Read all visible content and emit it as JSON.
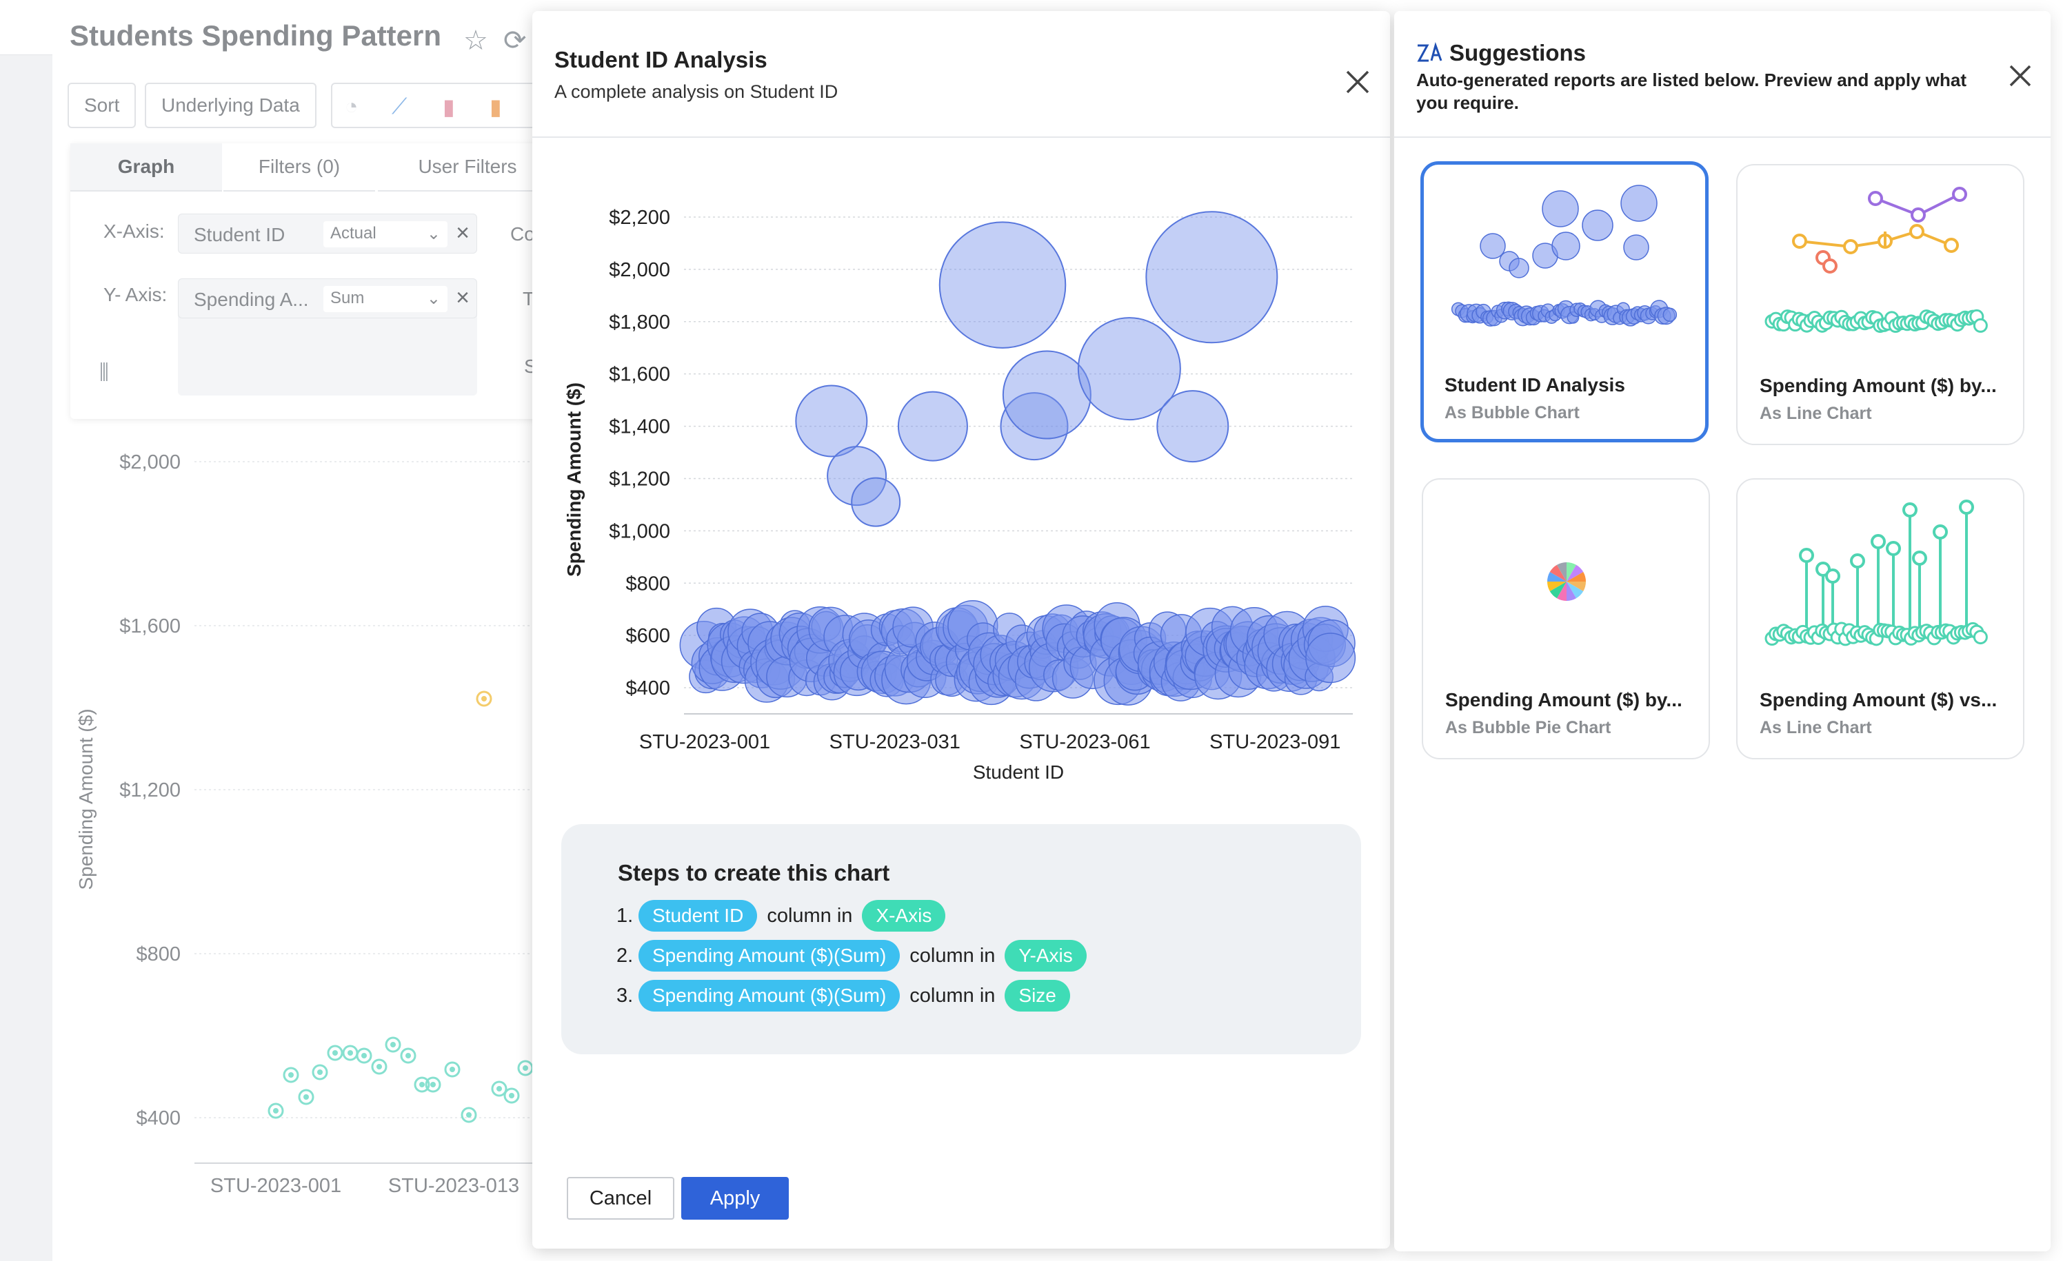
{
  "workspace": {
    "title": "Students Spending Pattern",
    "buttons": {
      "sort": "Sort",
      "underlying": "Underlying Data"
    },
    "tabs": {
      "graph": "Graph",
      "filters": "Filters  (0)",
      "user_filters": "User Filters"
    },
    "x_axis": {
      "label": "X-Axis:",
      "field": "Student ID",
      "agg": "Actual"
    },
    "y_axis": {
      "label": "Y- Axis:",
      "field": "Spending A...",
      "agg": "Sum"
    },
    "cut_labels": {
      "co": "Co",
      "t": "T",
      "s": "S"
    },
    "bg_chart": {
      "y_label": "Spending Amount ($)",
      "y_ticks": [
        "$2,000",
        "$1,600",
        "$1,200",
        "$800",
        "$400"
      ],
      "x_ticks": [
        "STU-2023-001",
        "STU-2023-013"
      ],
      "color": "#86e0cf",
      "highlight_color": "#f4cc6b"
    }
  },
  "analysis": {
    "title": "Student ID Analysis",
    "subtitle": "A complete analysis on Student ID",
    "cancel_label": "Cancel",
    "apply_label": "Apply",
    "steps_title": "Steps to create this chart",
    "steps": [
      {
        "num": "1.",
        "field": "Student ID",
        "mid": "column in",
        "target": "X-Axis"
      },
      {
        "num": "2.",
        "field": "Spending Amount ($)(Sum)",
        "mid": "column in",
        "target": "Y-Axis"
      },
      {
        "num": "3.",
        "field": "Spending Amount ($)(Sum)",
        "mid": "column in",
        "target": "Size"
      }
    ]
  },
  "chart_data": {
    "type": "scatter",
    "subtype": "bubble",
    "xlabel": "Student ID",
    "ylabel": "Spending Amount ($)",
    "ylim": [
      300,
      2250
    ],
    "y_ticks": [
      "$2,200",
      "$2,000",
      "$1,800",
      "$1,600",
      "$1,400",
      "$1,200",
      "$1,000",
      "$800",
      "$600",
      "$400"
    ],
    "x_ticks": [
      "STU-2023-001",
      "STU-2023-031",
      "STU-2023-061",
      "STU-2023-091"
    ],
    "grid": true,
    "color": "#7b96ec",
    "large_bubbles": [
      {
        "x": 21,
        "y": 1420,
        "size": 1420
      },
      {
        "x": 25,
        "y": 1210,
        "size": 1300
      },
      {
        "x": 28,
        "y": 1110,
        "size": 1200
      },
      {
        "x": 37,
        "y": 1400,
        "size": 1400
      },
      {
        "x": 53,
        "y": 1400,
        "size": 1380
      },
      {
        "x": 48,
        "y": 1940,
        "size": 1950
      },
      {
        "x": 55,
        "y": 1520,
        "size": 1580
      },
      {
        "x": 68,
        "y": 1620,
        "size": 1720
      },
      {
        "x": 81,
        "y": 1970,
        "size": 2000
      },
      {
        "x": 78,
        "y": 1400,
        "size": 1420
      }
    ],
    "small_bubbles_range": {
      "x": [
        1,
        100
      ],
      "y": [
        400,
        650
      ]
    }
  },
  "suggestions": {
    "title": "Suggestions",
    "description": "Auto-generated reports are listed below. Preview and apply what you require.",
    "cards": [
      {
        "title": "Student ID Analysis",
        "subtitle": "As Bubble Chart",
        "selected": true
      },
      {
        "title": "Spending Amount ($) by...",
        "subtitle": "As Line Chart",
        "selected": false
      },
      {
        "title": "Spending Amount ($) by...",
        "subtitle": "As Bubble Pie Chart",
        "selected": false
      },
      {
        "title": "Spending Amount ($) vs...",
        "subtitle": "As Line Chart",
        "selected": false
      }
    ]
  }
}
